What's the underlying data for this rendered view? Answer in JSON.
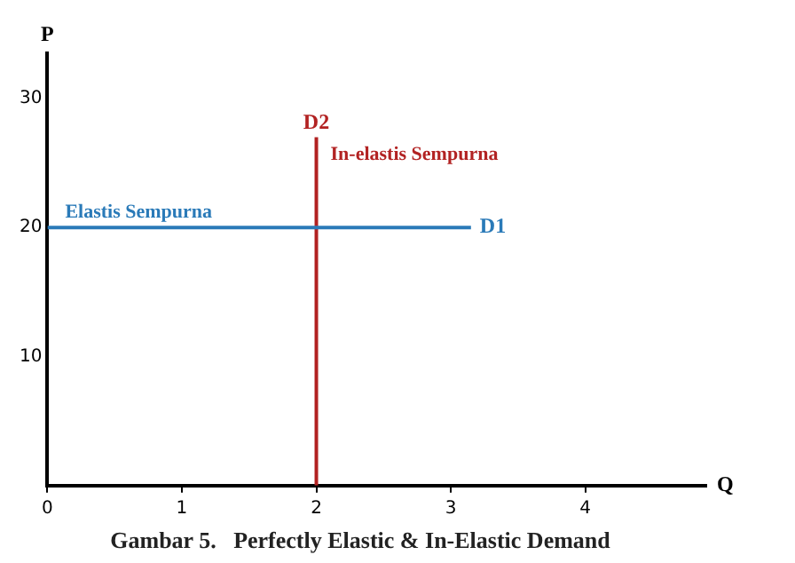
{
  "chart_data": {
    "type": "line",
    "title": "Gambar 5.   Perfectly Elastic & In-Elastic Demand",
    "xlabel": "Q",
    "ylabel": "P",
    "xlim": [
      0,
      4.9
    ],
    "ylim": [
      0,
      33.5
    ],
    "xticks": [
      0,
      1,
      2,
      3,
      4
    ],
    "yticks": [
      10,
      20,
      30
    ],
    "grid": false,
    "legend": false,
    "marker": "none",
    "series": [
      {
        "name": "D1",
        "color": "#2a7ab8",
        "x": [
          0,
          3.15
        ],
        "values": [
          20,
          20
        ]
      },
      {
        "name": "D2",
        "color": "#b22222",
        "x": [
          2,
          2
        ],
        "values": [
          0,
          27
        ]
      }
    ],
    "annotations": [
      "Elastis Sempurna",
      "In-elastis Sempurna"
    ]
  }
}
